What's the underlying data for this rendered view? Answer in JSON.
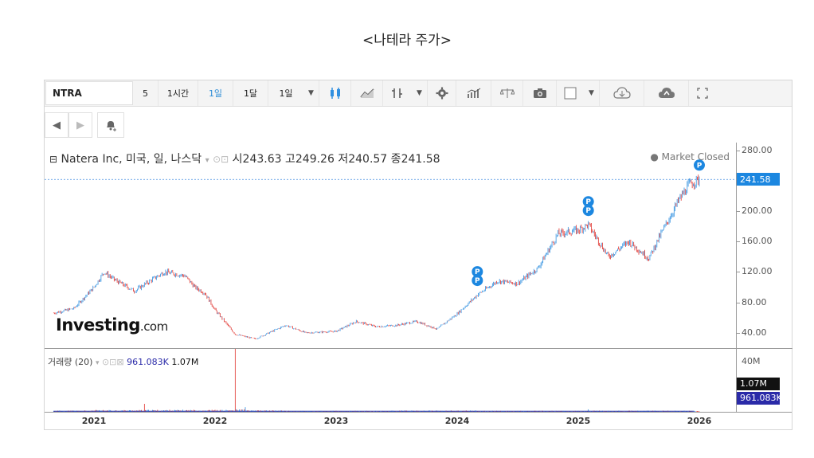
{
  "page_title": "<나테라 주가>",
  "toolbar": {
    "symbol": "NTRA",
    "intervals": [
      "5",
      "1시간",
      "1일",
      "1달",
      "1일"
    ],
    "active_interval": "1일",
    "icons": [
      "candlestick-icon",
      "line-chart-icon",
      "bar-chart-icon",
      "gear-icon",
      "indicators-icon",
      "compare-icon",
      "camera-icon",
      "color-box-icon",
      "cloud-download-icon",
      "cloud-upload-icon",
      "fullscreen-icon"
    ]
  },
  "toolbar2": {
    "icons": [
      "undo-icon",
      "redo-icon",
      "alert-bell-icon"
    ]
  },
  "legend": {
    "name": "Natera Inc, 미국, 일, 나스닥",
    "open_label": "시",
    "open": "243.63",
    "high_label": "고",
    "high": "249.26",
    "low_label": "저",
    "low": "240.57",
    "close_label": "종",
    "close": "241.58",
    "market_status": "Market Closed"
  },
  "volume_legend": {
    "label": "거래량 (20)",
    "ma_value": "961.083K",
    "volume_value": "1.07M"
  },
  "logo": {
    "main": "Investing",
    "suffix": ".com"
  },
  "colors": {
    "up": "#2f8fe0",
    "down": "#e0302b",
    "ma": "#2330a8",
    "price_tag": "#1c87e0",
    "vol_tag": "#2a2aa8"
  },
  "chart_data": {
    "type": "candlestick",
    "title": "Natera Inc, 미국, 일, 나스닥",
    "x_ticks": [
      "2021",
      "2022",
      "2023",
      "2024",
      "2025",
      "2026"
    ],
    "price_ticks": [
      "280.00",
      "240.00",
      "200.00",
      "160.00",
      "120.00",
      "80.00",
      "40.00"
    ],
    "price_ylim": [
      20,
      290
    ],
    "volume_ticks": [
      "40M",
      "20M"
    ],
    "volume_ylim": [
      0,
      50
    ],
    "last_close": "241.58",
    "last_volume": "1.07M",
    "volume_ma": "961.083K",
    "price_series": [
      {
        "date": "2020-09",
        "close": 66
      },
      {
        "date": "2020-11",
        "close": 72
      },
      {
        "date": "2021-01",
        "close": 100
      },
      {
        "date": "2021-02",
        "close": 120
      },
      {
        "date": "2021-03",
        "close": 110
      },
      {
        "date": "2021-05",
        "close": 95
      },
      {
        "date": "2021-07",
        "close": 112
      },
      {
        "date": "2021-08",
        "close": 120
      },
      {
        "date": "2021-10",
        "close": 115
      },
      {
        "date": "2021-11",
        "close": 100
      },
      {
        "date": "2021-12",
        "close": 92
      },
      {
        "date": "2022-01",
        "close": 70
      },
      {
        "date": "2022-03",
        "close": 38
      },
      {
        "date": "2022-05",
        "close": 32
      },
      {
        "date": "2022-08",
        "close": 50
      },
      {
        "date": "2022-10",
        "close": 40
      },
      {
        "date": "2023-01",
        "close": 42
      },
      {
        "date": "2023-03",
        "close": 55
      },
      {
        "date": "2023-05",
        "close": 48
      },
      {
        "date": "2023-07",
        "close": 50
      },
      {
        "date": "2023-09",
        "close": 55
      },
      {
        "date": "2023-11",
        "close": 45
      },
      {
        "date": "2024-01",
        "close": 65
      },
      {
        "date": "2024-03",
        "close": 90
      },
      {
        "date": "2024-05",
        "close": 108
      },
      {
        "date": "2024-07",
        "close": 105
      },
      {
        "date": "2024-09",
        "close": 125
      },
      {
        "date": "2024-11",
        "close": 170
      },
      {
        "date": "2025-01",
        "close": 175
      },
      {
        "date": "2025-02",
        "close": 182
      },
      {
        "date": "2025-04",
        "close": 140
      },
      {
        "date": "2025-06",
        "close": 160
      },
      {
        "date": "2025-08",
        "close": 138
      },
      {
        "date": "2025-09",
        "close": 165
      },
      {
        "date": "2025-11",
        "close": 215
      },
      {
        "date": "2025-12",
        "close": 235
      },
      {
        "date": "2026-01",
        "close": 241.58
      }
    ],
    "volume_series_millions": [
      {
        "date": "2020-09",
        "volume": 1.2
      },
      {
        "date": "2021-01",
        "volume": 1.5
      },
      {
        "date": "2021-06",
        "volume": 5.0
      },
      {
        "date": "2021-12",
        "volume": 1.6
      },
      {
        "date": "2022-03",
        "volume": 44.0
      },
      {
        "date": "2022-04",
        "volume": 7.0
      },
      {
        "date": "2022-08",
        "volume": 1.3
      },
      {
        "date": "2023-01",
        "volume": 1.0
      },
      {
        "date": "2023-06",
        "volume": 1.2
      },
      {
        "date": "2023-11",
        "volume": 1.4
      },
      {
        "date": "2024-03",
        "volume": 1.2
      },
      {
        "date": "2024-09",
        "volume": 1.0
      },
      {
        "date": "2025-02",
        "volume": 3.5
      },
      {
        "date": "2025-06",
        "volume": 1.1
      },
      {
        "date": "2025-11",
        "volume": 1.2
      },
      {
        "date": "2026-01",
        "volume": 1.07
      }
    ],
    "earnings_markers": [
      {
        "date": "2024-03",
        "label": "P"
      },
      {
        "date": "2024-03",
        "label": "P"
      },
      {
        "date": "2025-02",
        "label": "P"
      },
      {
        "date": "2025-02",
        "label": "P"
      },
      {
        "date": "2026-01",
        "label": "P"
      }
    ],
    "grid": false,
    "legend_position": "top-left"
  }
}
